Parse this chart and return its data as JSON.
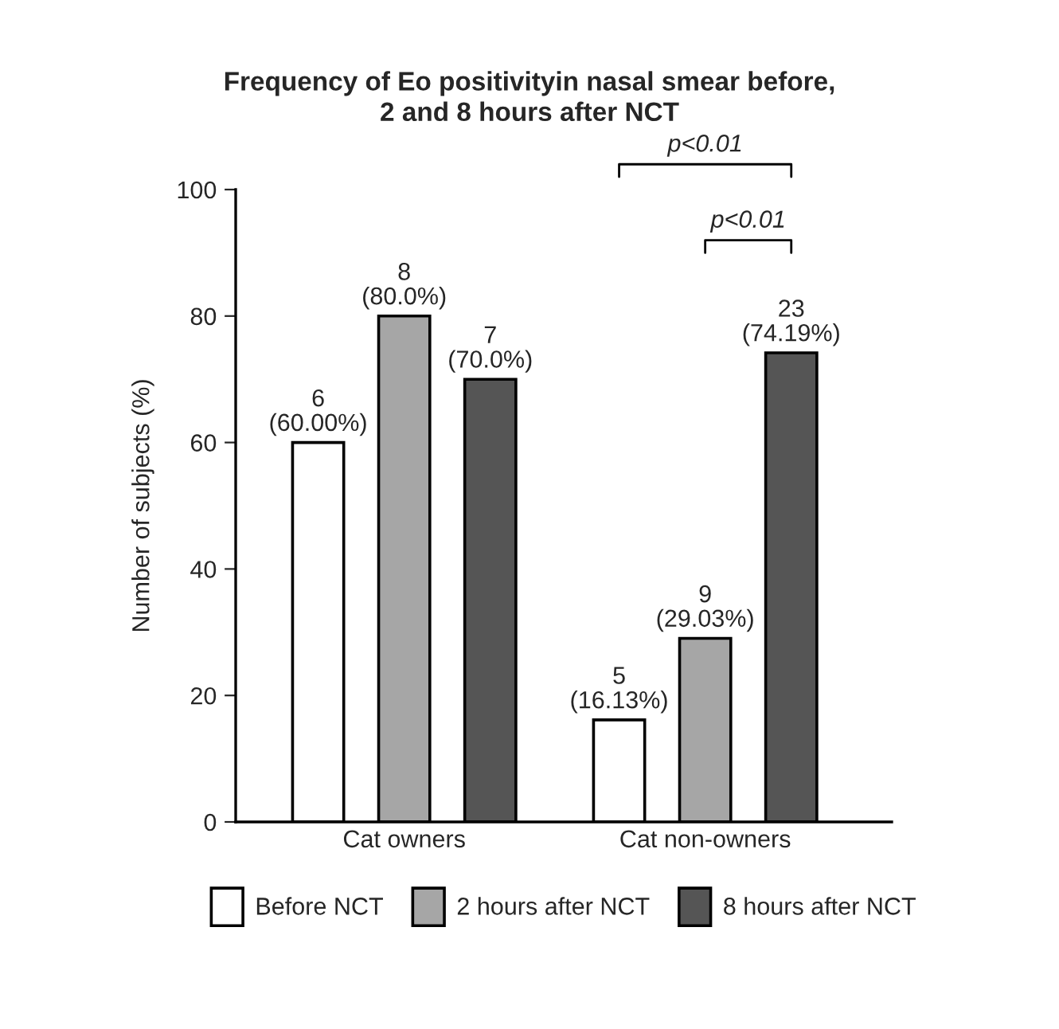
{
  "chart_data": {
    "type": "bar",
    "title": "Frequency of Eo positivityin nasal smear before,\n2 and 8 hours after NCT",
    "ylabel": "Number of subjects (%)",
    "categories": [
      "Cat owners",
      "Cat non-owners"
    ],
    "series": [
      {
        "name": "Before NCT",
        "color": "#ffffff",
        "values": [
          60,
          16.13
        ],
        "value_labels": [
          "6\n(60.00%)",
          "5\n(16.13%)"
        ]
      },
      {
        "name": "2 hours after NCT",
        "color": "#a6a6a6",
        "values": [
          80,
          29.03
        ],
        "value_labels": [
          "8\n(80.0%)",
          "9\n(29.03%)"
        ]
      },
      {
        "name": "8 hours after NCT",
        "color": "#555555",
        "values": [
          70,
          74.19
        ],
        "value_labels": [
          "7\n(70.0%)",
          "23\n(74.19%)"
        ]
      }
    ],
    "annotations": [
      "p<0.01",
      "p<0.01"
    ],
    "ylim": [
      0,
      100
    ],
    "yticks": [
      0,
      20,
      40,
      60,
      80,
      100
    ],
    "grid": false,
    "legend": "bottom"
  }
}
